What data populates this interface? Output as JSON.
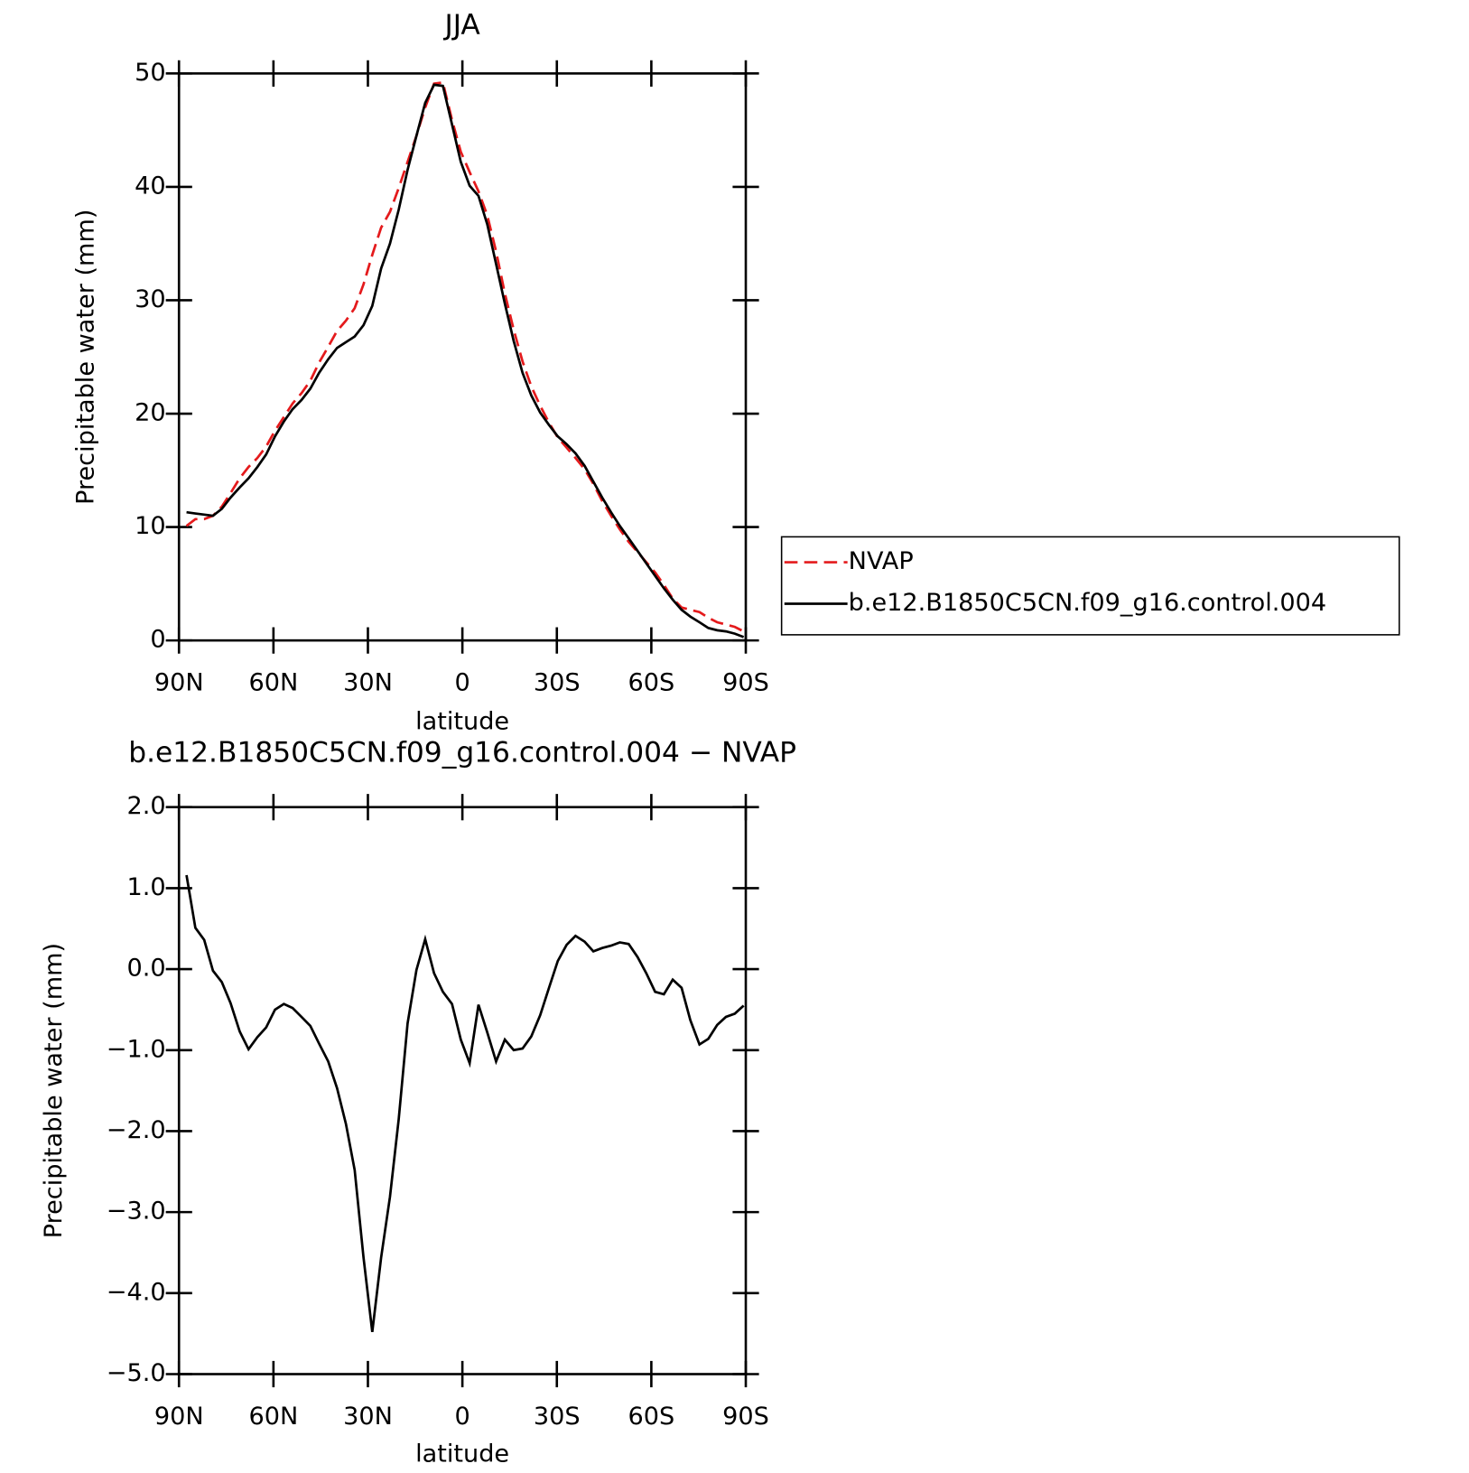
{
  "chart_data": [
    {
      "type": "line",
      "title": "JJA",
      "x_label": "latitude",
      "y_label": "Precipitable water (mm)",
      "x": [
        87.6,
        84.8,
        82.0,
        79.2,
        76.4,
        73.6,
        70.7,
        67.9,
        65.1,
        62.3,
        59.5,
        56.7,
        53.9,
        51.1,
        48.3,
        45.5,
        42.6,
        39.8,
        37.0,
        34.2,
        31.4,
        28.6,
        25.8,
        23.0,
        20.2,
        17.4,
        14.6,
        11.8,
        9.0,
        6.2,
        3.3,
        0.5,
        -2.3,
        -5.1,
        -7.9,
        -10.7,
        -13.5,
        -16.3,
        -19.1,
        -21.9,
        -24.7,
        -27.5,
        -30.3,
        -33.1,
        -35.9,
        -38.8,
        -41.6,
        -44.4,
        -47.2,
        -50.0,
        -52.8,
        -55.6,
        -58.4,
        -61.2,
        -64.0,
        -66.8,
        -69.6,
        -72.4,
        -75.3,
        -78.1,
        -80.9,
        -83.7,
        -86.5,
        -89.3
      ],
      "series": [
        {
          "name": "NVAP",
          "color": "#e41a1c",
          "dashed": true,
          "values": [
            10.1,
            10.7,
            10.7,
            11.0,
            11.8,
            13.0,
            14.3,
            15.3,
            16.1,
            17.1,
            18.5,
            19.7,
            20.9,
            21.8,
            22.9,
            24.5,
            25.9,
            27.3,
            28.2,
            29.3,
            31.4,
            34.0,
            36.4,
            37.8,
            39.9,
            42.2,
            44.5,
            47.0,
            49.1,
            49.2,
            45.9,
            43.1,
            41.3,
            39.6,
            37.5,
            34.3,
            30.6,
            27.4,
            24.6,
            22.4,
            20.7,
            19.2,
            17.9,
            17.0,
            16.1,
            15.1,
            13.8,
            12.3,
            11.0,
            9.8,
            8.7,
            7.8,
            6.9,
            6.0,
            4.9,
            3.7,
            2.9,
            2.7,
            2.5,
            2.0,
            1.6,
            1.4,
            1.2,
            0.8
          ]
        },
        {
          "name": "b.e12.B1850C5CN.f09_g16.control.004",
          "color": "#000000",
          "dashed": false,
          "values": [
            11.3,
            11.2,
            11.1,
            11.0,
            11.6,
            12.6,
            13.5,
            14.3,
            15.3,
            16.4,
            18.0,
            19.3,
            20.4,
            21.2,
            22.2,
            23.6,
            24.8,
            25.8,
            26.3,
            26.8,
            27.8,
            29.5,
            32.8,
            35.0,
            38.0,
            41.5,
            44.5,
            47.4,
            49.0,
            48.9,
            45.5,
            42.2,
            40.1,
            39.2,
            36.7,
            33.2,
            29.7,
            26.4,
            23.6,
            21.6,
            20.1,
            19.0,
            18.0,
            17.3,
            16.5,
            15.4,
            14.0,
            12.6,
            11.3,
            10.1,
            9.0,
            7.9,
            6.8,
            5.7,
            4.6,
            3.6,
            2.7,
            2.1,
            1.6,
            1.1,
            0.9,
            0.8,
            0.6,
            0.3
          ]
        }
      ],
      "xlim": [
        90,
        -90
      ],
      "xticks": [
        {
          "value": 90,
          "label": "90N"
        },
        {
          "value": 60,
          "label": "60N"
        },
        {
          "value": 30,
          "label": "30N"
        },
        0,
        {
          "value": -30,
          "label": "30S"
        },
        {
          "value": -60,
          "label": "60S"
        },
        {
          "value": -90,
          "label": "90S"
        }
      ],
      "ylim": [
        0,
        50
      ],
      "yticks": [
        0,
        10,
        20,
        30,
        40,
        50
      ],
      "legend": "right"
    },
    {
      "type": "line",
      "title": "b.e12.B1850C5CN.f09_g16.control.004 − NVAP",
      "x_label": "latitude",
      "y_label": "Precipitable water (mm)",
      "x": [
        87.6,
        84.8,
        82.0,
        79.2,
        76.4,
        73.6,
        70.7,
        67.9,
        65.1,
        62.3,
        59.5,
        56.7,
        53.9,
        51.1,
        48.3,
        45.5,
        42.6,
        39.8,
        37.0,
        34.2,
        31.4,
        28.6,
        25.8,
        23.0,
        20.2,
        17.4,
        14.6,
        11.8,
        9.0,
        6.2,
        3.3,
        0.5,
        -2.3,
        -5.1,
        -7.9,
        -10.7,
        -13.5,
        -16.3,
        -19.1,
        -21.9,
        -24.7,
        -27.5,
        -30.3,
        -33.1,
        -35.9,
        -38.8,
        -41.6,
        -44.4,
        -47.2,
        -50.0,
        -52.8,
        -55.6,
        -58.4,
        -61.2,
        -64.0,
        -66.8,
        -69.6,
        -72.4,
        -75.3,
        -78.1,
        -80.9,
        -83.7,
        -86.5,
        -89.3
      ],
      "values": [
        1.16,
        0.51,
        0.36,
        -0.02,
        -0.16,
        -0.42,
        -0.77,
        -0.99,
        -0.84,
        -0.72,
        -0.5,
        -0.43,
        -0.48,
        -0.59,
        -0.7,
        -0.92,
        -1.14,
        -1.47,
        -1.91,
        -2.48,
        -3.56,
        -4.48,
        -3.56,
        -2.81,
        -1.85,
        -0.67,
        -0.01,
        0.37,
        -0.05,
        -0.28,
        -0.43,
        -0.87,
        -1.16,
        -0.44,
        -0.78,
        -1.14,
        -0.87,
        -1.0,
        -0.98,
        -0.83,
        -0.57,
        -0.23,
        0.1,
        0.3,
        0.41,
        0.34,
        0.22,
        0.26,
        0.29,
        0.33,
        0.31,
        0.15,
        -0.05,
        -0.28,
        -0.31,
        -0.13,
        -0.23,
        -0.63,
        -0.93,
        -0.86,
        -0.69,
        -0.59,
        -0.55,
        -0.45
      ],
      "color": "#000000",
      "xlim": [
        90,
        -90
      ],
      "xticks": [
        {
          "value": 90,
          "label": "90N"
        },
        {
          "value": 60,
          "label": "60N"
        },
        {
          "value": 30,
          "label": "30N"
        },
        0,
        {
          "value": -30,
          "label": "30S"
        },
        {
          "value": -60,
          "label": "60S"
        },
        {
          "value": -90,
          "label": "90S"
        }
      ],
      "ylim": [
        -5,
        2
      ],
      "yticks": [
        {
          "value": -5,
          "label": "−5.0"
        },
        {
          "value": -4,
          "label": "−4.0"
        },
        {
          "value": -3,
          "label": "−3.0"
        },
        {
          "value": -2,
          "label": "−2.0"
        },
        {
          "value": -1,
          "label": "−1.0"
        },
        {
          "value": 0,
          "label": "0.0"
        },
        {
          "value": 1,
          "label": "1.0"
        },
        {
          "value": 2,
          "label": "2.0"
        }
      ]
    }
  ]
}
